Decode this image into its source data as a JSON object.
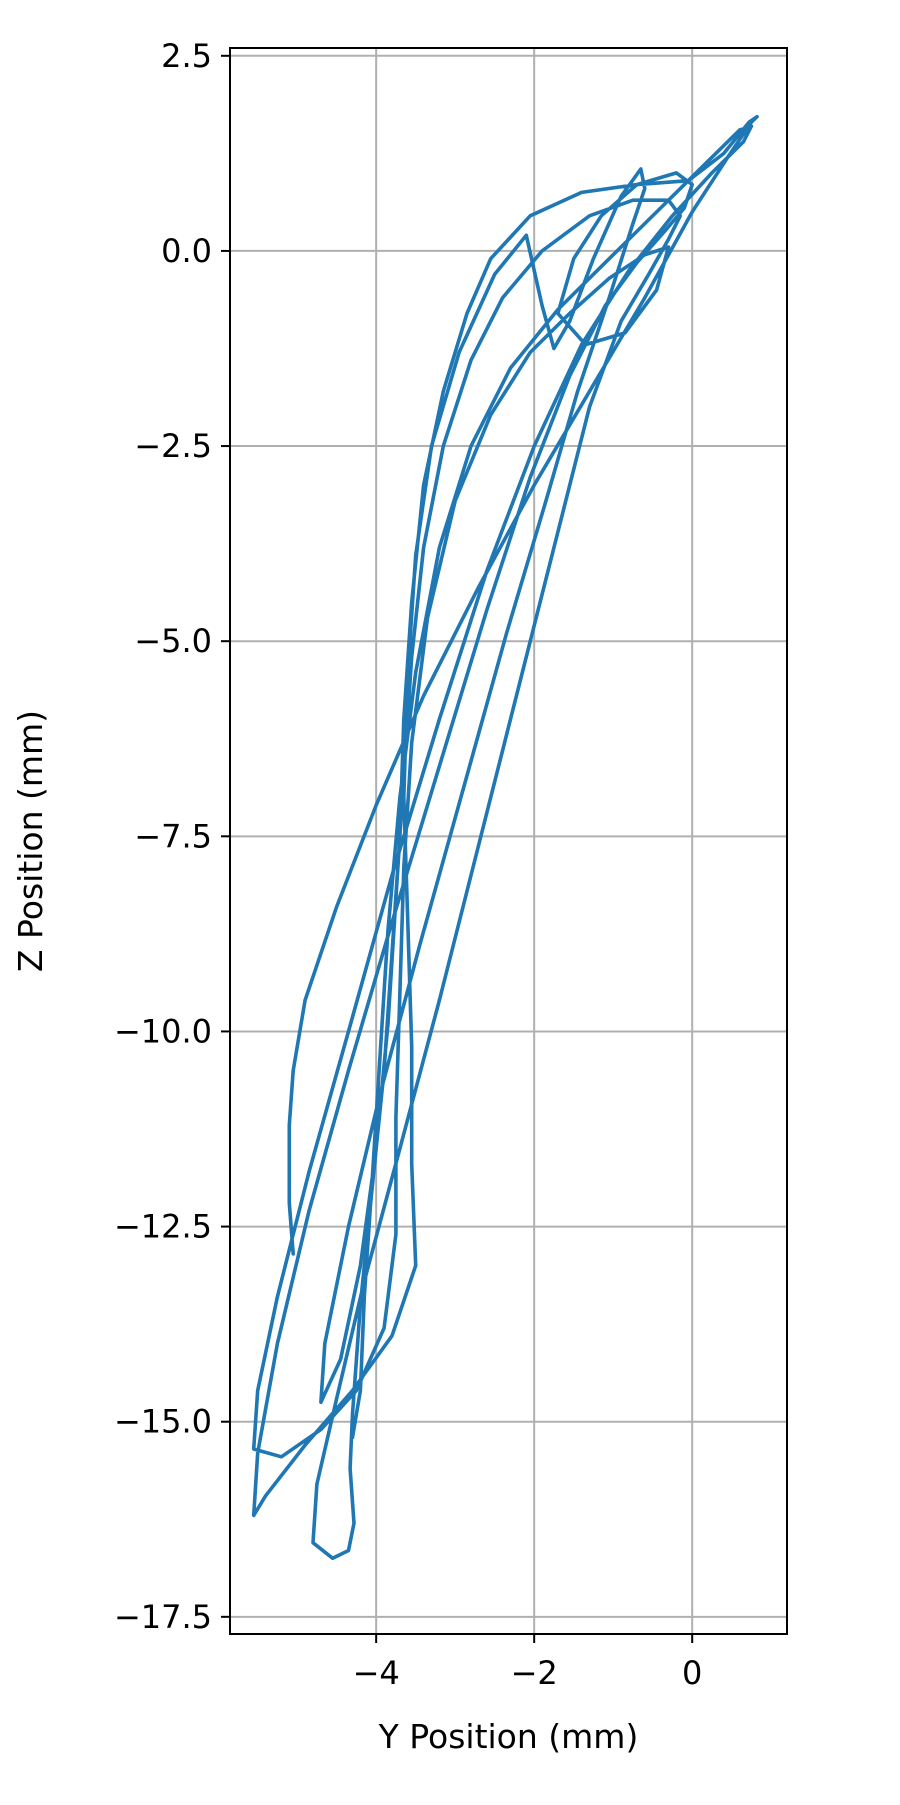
{
  "chart_data": {
    "type": "line",
    "title": "",
    "xlabel": "Y Position (mm)",
    "ylabel": "Z Position (mm)",
    "xlim": [
      -5.85,
      1.2
    ],
    "ylim": [
      -17.72,
      2.6
    ],
    "xticks": [
      -4,
      -2,
      0
    ],
    "xtick_labels": [
      "−4",
      "−2",
      "0"
    ],
    "yticks": [
      2.5,
      0.0,
      -2.5,
      -5.0,
      -7.5,
      -10.0,
      -12.5,
      -15.0,
      -17.5
    ],
    "ytick_labels": [
      "2.5",
      "0.0",
      "−2.5",
      "−5.0",
      "−7.5",
      "−10.0",
      "−12.5",
      "−15.0",
      "−17.5"
    ],
    "grid": true,
    "series": [
      {
        "color": "#1f77b4",
        "points": [
          [
            -5.05,
            -12.85
          ],
          [
            -5.1,
            -12.2
          ],
          [
            -5.1,
            -11.2
          ],
          [
            -5.05,
            -10.5
          ],
          [
            -4.9,
            -9.6
          ],
          [
            -4.5,
            -8.4
          ],
          [
            -4.0,
            -7.1
          ],
          [
            -3.4,
            -5.7
          ],
          [
            -2.7,
            -4.3
          ],
          [
            -2.0,
            -3.0
          ],
          [
            -1.3,
            -1.8
          ],
          [
            -0.6,
            -0.6
          ],
          [
            0.0,
            0.5
          ],
          [
            0.45,
            1.2
          ],
          [
            0.75,
            1.65
          ],
          [
            0.82,
            1.72
          ],
          [
            0.72,
            1.65
          ],
          [
            0.4,
            1.25
          ],
          [
            -0.05,
            0.9
          ],
          [
            -0.7,
            0.85
          ],
          [
            -1.4,
            0.75
          ],
          [
            -2.05,
            0.45
          ],
          [
            -2.55,
            -0.1
          ],
          [
            -2.85,
            -0.8
          ],
          [
            -3.15,
            -1.8
          ],
          [
            -3.4,
            -3.0
          ],
          [
            -3.55,
            -4.5
          ],
          [
            -3.65,
            -6.0
          ],
          [
            -3.7,
            -7.5
          ],
          [
            -3.8,
            -9.0
          ],
          [
            -3.9,
            -10.5
          ],
          [
            -4.05,
            -12.0
          ],
          [
            -4.2,
            -13.5
          ],
          [
            -4.3,
            -14.9
          ],
          [
            -4.33,
            -15.6
          ],
          [
            -4.28,
            -16.3
          ],
          [
            -4.35,
            -16.65
          ],
          [
            -4.55,
            -16.75
          ],
          [
            -4.8,
            -16.55
          ],
          [
            -4.75,
            -15.8
          ],
          [
            -4.5,
            -14.7
          ],
          [
            -4.15,
            -13.2
          ],
          [
            -3.7,
            -11.5
          ],
          [
            -3.2,
            -9.6
          ],
          [
            -2.7,
            -7.6
          ],
          [
            -2.2,
            -5.6
          ],
          [
            -1.7,
            -3.6
          ],
          [
            -1.3,
            -2.0
          ],
          [
            -0.9,
            -0.9
          ],
          [
            -0.55,
            -0.3
          ],
          [
            -0.3,
            0.15
          ],
          [
            -0.15,
            0.45
          ],
          [
            -0.3,
            0.65
          ],
          [
            -0.75,
            0.65
          ],
          [
            -1.3,
            0.45
          ],
          [
            -1.9,
            0.0
          ],
          [
            -2.4,
            -0.6
          ],
          [
            -2.8,
            -1.4
          ],
          [
            -3.15,
            -2.5
          ],
          [
            -3.4,
            -3.8
          ],
          [
            -3.55,
            -5.2
          ],
          [
            -3.65,
            -6.7
          ],
          [
            -3.75,
            -8.3
          ],
          [
            -3.85,
            -9.9
          ],
          [
            -4.0,
            -11.5
          ],
          [
            -4.2,
            -13.0
          ],
          [
            -4.45,
            -14.2
          ],
          [
            -4.7,
            -14.75
          ],
          [
            -4.65,
            -14.0
          ],
          [
            -4.35,
            -12.5
          ],
          [
            -3.95,
            -10.8
          ],
          [
            -3.45,
            -8.9
          ],
          [
            -2.9,
            -6.9
          ],
          [
            -2.35,
            -4.9
          ],
          [
            -1.85,
            -3.2
          ],
          [
            -1.45,
            -1.8
          ],
          [
            -1.05,
            -0.6
          ],
          [
            -0.75,
            0.35
          ],
          [
            -0.6,
            0.8
          ],
          [
            -0.65,
            1.05
          ],
          [
            -0.9,
            0.7
          ],
          [
            -1.25,
            -0.1
          ],
          [
            -1.55,
            -0.9
          ],
          [
            -1.75,
            -1.25
          ],
          [
            -1.9,
            -0.7
          ],
          [
            -2.1,
            0.2
          ],
          [
            -2.5,
            -0.3
          ],
          [
            -2.95,
            -1.3
          ],
          [
            -3.3,
            -2.5
          ],
          [
            -3.5,
            -3.9
          ],
          [
            -3.6,
            -5.4
          ],
          [
            -3.65,
            -7.0
          ],
          [
            -3.6,
            -8.6
          ],
          [
            -3.55,
            -10.2
          ],
          [
            -3.55,
            -11.7
          ],
          [
            -3.5,
            -13.0
          ],
          [
            -3.8,
            -13.9
          ],
          [
            -4.3,
            -14.6
          ],
          [
            -4.9,
            -15.3
          ],
          [
            -5.4,
            -15.95
          ],
          [
            -5.55,
            -16.2
          ],
          [
            -5.5,
            -15.4
          ],
          [
            -5.25,
            -14.0
          ],
          [
            -4.85,
            -12.3
          ],
          [
            -4.35,
            -10.5
          ],
          [
            -3.8,
            -8.6
          ],
          [
            -3.2,
            -6.6
          ],
          [
            -2.6,
            -4.6
          ],
          [
            -2.05,
            -2.9
          ],
          [
            -1.55,
            -1.6
          ],
          [
            -1.1,
            -0.7
          ],
          [
            -0.7,
            -0.15
          ],
          [
            -0.35,
            0.25
          ],
          [
            -0.1,
            0.55
          ],
          [
            0.0,
            0.85
          ],
          [
            -0.2,
            1.0
          ],
          [
            -0.7,
            0.85
          ],
          [
            -1.15,
            0.45
          ],
          [
            -1.5,
            -0.1
          ],
          [
            -1.7,
            -0.8
          ],
          [
            -1.35,
            -1.2
          ],
          [
            -0.85,
            -1.05
          ],
          [
            -0.45,
            -0.5
          ],
          [
            -0.3,
            0.05
          ],
          [
            -0.6,
            -0.05
          ],
          [
            -1.05,
            -0.35
          ],
          [
            -1.55,
            -0.8
          ],
          [
            -2.05,
            -1.3
          ],
          [
            -2.55,
            -2.1
          ],
          [
            -3.0,
            -3.2
          ],
          [
            -3.35,
            -4.7
          ],
          [
            -3.55,
            -6.3
          ],
          [
            -3.65,
            -7.9
          ],
          [
            -3.7,
            -9.5
          ],
          [
            -3.75,
            -11.1
          ],
          [
            -3.75,
            -12.6
          ],
          [
            -3.9,
            -13.8
          ],
          [
            -4.25,
            -14.6
          ],
          [
            -4.7,
            -15.1
          ],
          [
            -5.2,
            -15.45
          ],
          [
            -5.55,
            -15.35
          ],
          [
            -5.5,
            -14.6
          ],
          [
            -5.25,
            -13.4
          ],
          [
            -4.85,
            -11.8
          ],
          [
            -4.35,
            -10.0
          ],
          [
            -3.8,
            -8.0
          ],
          [
            -3.2,
            -6.0
          ],
          [
            -2.6,
            -4.1
          ],
          [
            -2.0,
            -2.5
          ],
          [
            -1.4,
            -1.2
          ],
          [
            -0.8,
            -0.25
          ],
          [
            -0.25,
            0.45
          ],
          [
            0.25,
            1.0
          ],
          [
            0.65,
            1.4
          ],
          [
            0.75,
            1.6
          ],
          [
            0.6,
            1.55
          ],
          [
            0.2,
            1.15
          ],
          [
            -0.4,
            0.55
          ],
          [
            -1.05,
            -0.1
          ],
          [
            -1.7,
            -0.75
          ],
          [
            -2.3,
            -1.5
          ],
          [
            -2.8,
            -2.5
          ],
          [
            -3.2,
            -3.8
          ],
          [
            -3.5,
            -5.4
          ],
          [
            -3.7,
            -7.0
          ],
          [
            -3.85,
            -8.7
          ],
          [
            -3.95,
            -10.3
          ],
          [
            -4.05,
            -11.9
          ],
          [
            -4.15,
            -13.4
          ],
          [
            -4.2,
            -14.6
          ],
          [
            -4.3,
            -15.2
          ]
        ]
      }
    ]
  }
}
